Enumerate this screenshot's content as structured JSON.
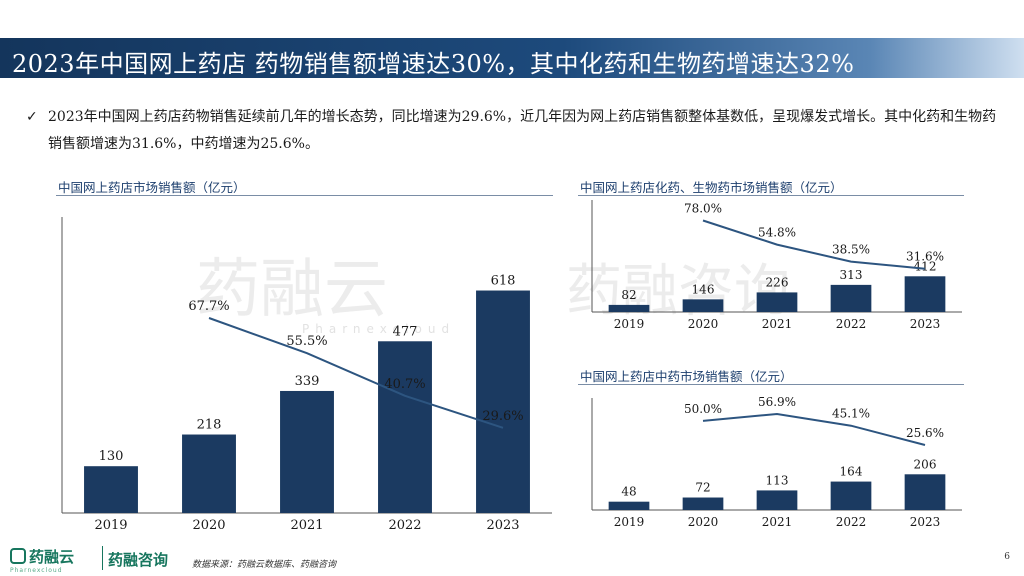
{
  "header": {
    "title": "2023年中国网上药店 药物销售额增速达30%，其中化药和生物药增速达32%"
  },
  "summary": {
    "checkmark": "✓",
    "text": "2023年中国网上药店药物销售延续前几年的增长态势，同比增速为29.6%，近几年因为网上药店销售额整体基数低，呈现爆发式增长。其中化药和生物药销售额增速为31.6%，中药增速为25.6%。"
  },
  "watermark": {
    "brand": "药融云",
    "brand_en": "Pharnexcloud",
    "brand2": "药融咨询"
  },
  "footer": {
    "logo_text": "药融云",
    "logo_sub": "Pharnexcloud",
    "brand2": "药融咨询",
    "source": "数据来源：药融云数据库、药融咨询",
    "page": "6"
  },
  "colors": {
    "bar": "#1b3a61",
    "line": "#2d5580",
    "title_bg": "#1d4a7c",
    "brand_green": "#17765e"
  },
  "chart_data": [
    {
      "type": "bar",
      "title": "中国网上药店市场销售额（亿元）",
      "categories": [
        "2019",
        "2020",
        "2021",
        "2022",
        "2023"
      ],
      "values": [
        130,
        218,
        339,
        477,
        618
      ],
      "value_labels": [
        "130",
        "218",
        "339",
        "477",
        "618"
      ],
      "growth": [
        null,
        67.7,
        55.5,
        40.7,
        29.6
      ],
      "growth_labels": [
        "",
        "67.7%",
        "55.5%",
        "40.7%",
        "29.6%"
      ],
      "ylim": [
        0,
        800
      ],
      "growth_ylim": [
        0,
        100
      ],
      "grid": false,
      "legend": "none"
    },
    {
      "type": "bar",
      "title": "中国网上药店化药、生物药市场销售额（亿元）",
      "categories": [
        "2019",
        "2020",
        "2021",
        "2022",
        "2023"
      ],
      "values": [
        82,
        146,
        226,
        313,
        412
      ],
      "value_labels": [
        "82",
        "146",
        "226",
        "313",
        "412"
      ],
      "growth": [
        null,
        78.0,
        54.8,
        38.5,
        31.6
      ],
      "growth_labels": [
        "",
        "78.0%",
        "54.8%",
        "38.5%",
        "31.6%"
      ],
      "ylim": [
        0,
        1200
      ],
      "growth_ylim": [
        -10,
        90
      ],
      "grid": false,
      "legend": "none"
    },
    {
      "type": "bar",
      "title": "中国网上药店中药市场销售额（亿元）",
      "categories": [
        "2019",
        "2020",
        "2021",
        "2022",
        "2023"
      ],
      "values": [
        48,
        72,
        113,
        164,
        206
      ],
      "value_labels": [
        "48",
        "72",
        "113",
        "164",
        "206"
      ],
      "growth": [
        null,
        50.0,
        56.9,
        45.1,
        25.6
      ],
      "growth_labels": [
        "",
        "50.0%",
        "56.9%",
        "45.1%",
        "25.6%"
      ],
      "ylim": [
        0,
        600
      ],
      "growth_ylim": [
        -40,
        65
      ],
      "grid": false,
      "legend": "none"
    }
  ]
}
